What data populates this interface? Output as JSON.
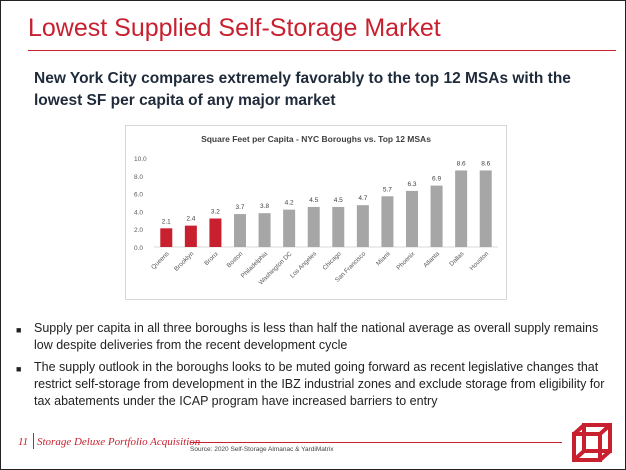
{
  "slide": {
    "title": "Lowest Supplied Self-Storage Market",
    "subtitle": "New York City compares extremely favorably to the top 12 MSAs with the lowest SF per capita of any major market",
    "bullets": [
      "Supply per capita in all three boroughs is less than half the national average as overall supply remains low despite deliveries from the recent development cycle",
      "The supply outlook in the boroughs looks to be muted going forward as recent legislative changes that restrict self-storage from development in the IBZ industrial zones and exclude storage from eligibility for tax abatements under the ICAP program have increased barriers to entry"
    ],
    "page_number": "11",
    "footer_title": "Storage Deluxe Portfolio Acquisition",
    "source": "Source: 2020 Self-Storage Almanac & YardiMatrix",
    "accent_color": "#c8202f"
  },
  "chart_data": {
    "type": "bar",
    "title": "Square Feet per Capita - NYC Boroughs vs. Top 12 MSAs",
    "categories": [
      "Queens",
      "Brooklyn",
      "Bronx",
      "Boston",
      "Philadelphia",
      "Washington DC",
      "Los Angeles",
      "Chicago",
      "San Francisco",
      "Miami",
      "Phoenix",
      "Atlanta",
      "Dallas",
      "Houston"
    ],
    "values": [
      2.1,
      2.4,
      3.2,
      3.7,
      3.8,
      4.2,
      4.5,
      4.5,
      4.7,
      5.7,
      6.3,
      6.9,
      8.6,
      8.6
    ],
    "data_labels": [
      "2.1",
      "2.4",
      "3.2",
      "3.7",
      "3.8",
      "4.2",
      "4.5",
      "4.5",
      "4.7",
      "5.7",
      "6.3",
      "6.9",
      "8.6",
      "8.6"
    ],
    "bar_colors": [
      "#c8202f",
      "#c8202f",
      "#c8202f",
      "#a6a6a6",
      "#a6a6a6",
      "#a6a6a6",
      "#a6a6a6",
      "#a6a6a6",
      "#a6a6a6",
      "#a6a6a6",
      "#a6a6a6",
      "#a6a6a6",
      "#a6a6a6",
      "#a6a6a6"
    ],
    "yticks": [
      "0.0",
      "2.0",
      "4.0",
      "6.0",
      "8.0",
      "10.0"
    ],
    "ylim": [
      0,
      10
    ],
    "xlabel": "",
    "ylabel": "",
    "grid": false,
    "legend": "none"
  }
}
